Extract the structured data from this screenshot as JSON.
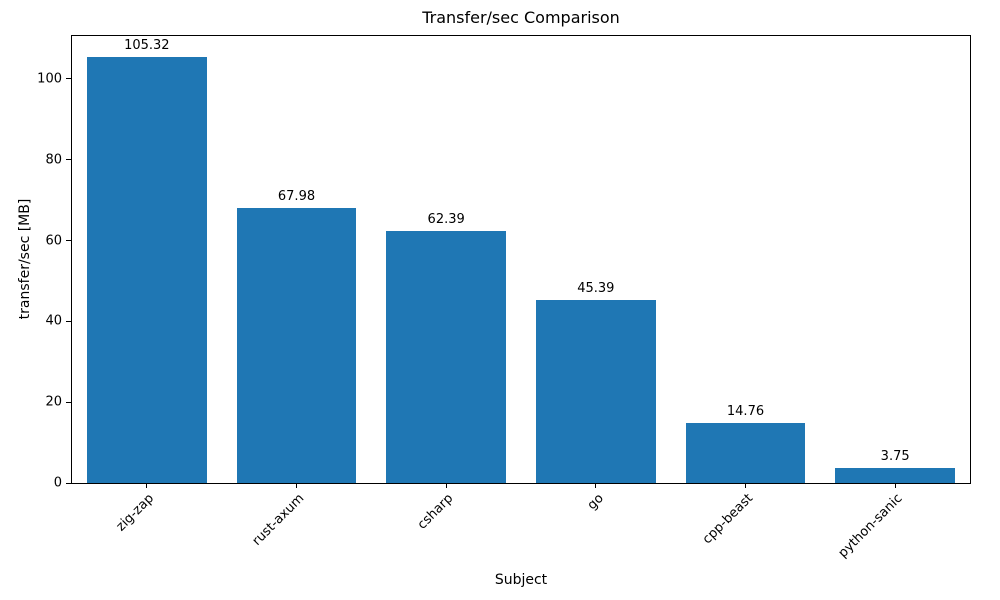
{
  "chart_data": {
    "type": "bar",
    "title": "Transfer/sec Comparison",
    "xlabel": "Subject",
    "ylabel": "transfer/sec [MB]",
    "categories": [
      "zig-zap",
      "rust-axum",
      "csharp",
      "go",
      "cpp-beast",
      "python-sanic"
    ],
    "values": [
      105.32,
      67.98,
      62.39,
      45.39,
      14.76,
      3.75
    ],
    "data_labels": [
      "105.32",
      "67.98",
      "62.39",
      "45.39",
      "14.76",
      "3.75"
    ],
    "yticks": [
      0,
      20,
      40,
      60,
      80,
      100
    ],
    "ylim": [
      0,
      110.6
    ],
    "bar_color": "#1f77b4",
    "bar_width_ratio": 0.8,
    "grid": false,
    "legend": false,
    "x_tick_rotation_deg": 45
  }
}
